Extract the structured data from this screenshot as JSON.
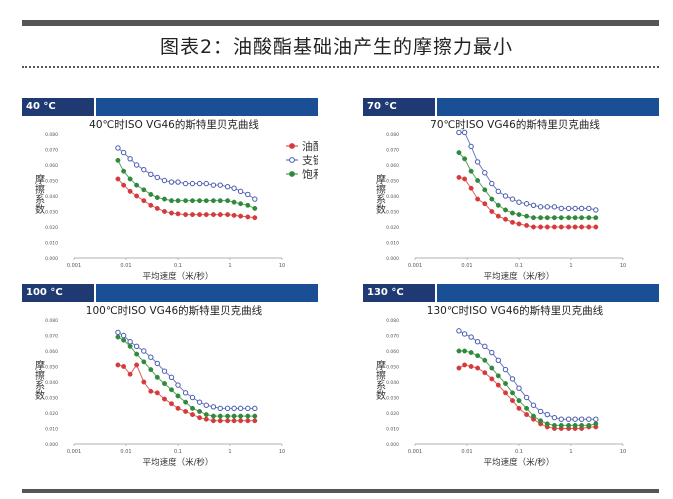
{
  "page": {
    "title": "图表2：油酸酯基础油产生的摩擦力最小"
  },
  "colors": {
    "header_dark": "#1f3a73",
    "header_bar": "#1a4f95",
    "oleate": "#d63a3a",
    "branched": "#4a5bb0",
    "saturated": "#2f8a3c"
  },
  "chart_data": [
    {
      "type": "scatter",
      "panel_label": "40 °C",
      "title": "40℃时ISO VG46的斯特里贝克曲线",
      "xlabel": "平均速度（米/秒）",
      "ylabel": "摩擦系数",
      "x_scale": "log",
      "xlim": [
        0.001,
        10
      ],
      "ylim": [
        0.0,
        0.08
      ],
      "x_ticks": [
        "0.001",
        "0.01",
        "0.1",
        "1",
        "10"
      ],
      "y_ticks": [
        "0.000",
        "0.010",
        "0.020",
        "0.030",
        "0.040",
        "0.050",
        "0.060",
        "0.070",
        "0.080"
      ],
      "x": [
        0.007,
        0.009,
        0.012,
        0.016,
        0.022,
        0.03,
        0.04,
        0.055,
        0.075,
        0.1,
        0.14,
        0.19,
        0.26,
        0.35,
        0.48,
        0.65,
        0.9,
        1.2,
        1.6,
        2.2,
        3.0
      ],
      "series": [
        {
          "name": "油酸酯",
          "color": "#d63a3a",
          "values": [
            0.051,
            0.047,
            0.043,
            0.04,
            0.037,
            0.034,
            0.032,
            0.03,
            0.029,
            0.0285,
            0.028,
            0.028,
            0.028,
            0.028,
            0.028,
            0.028,
            0.028,
            0.0275,
            0.027,
            0.0265,
            0.026
          ]
        },
        {
          "name": "支链酯",
          "color": "#4a5bb0",
          "values": [
            0.071,
            0.068,
            0.064,
            0.06,
            0.057,
            0.054,
            0.052,
            0.05,
            0.049,
            0.049,
            0.048,
            0.048,
            0.048,
            0.048,
            0.047,
            0.047,
            0.046,
            0.045,
            0.043,
            0.041,
            0.038
          ]
        },
        {
          "name": "饱和酯",
          "color": "#2f8a3c",
          "values": [
            0.063,
            0.056,
            0.051,
            0.047,
            0.044,
            0.041,
            0.039,
            0.038,
            0.037,
            0.037,
            0.037,
            0.037,
            0.037,
            0.037,
            0.037,
            0.037,
            0.037,
            0.036,
            0.035,
            0.034,
            0.032
          ]
        }
      ],
      "legend": {
        "show": true,
        "position": "right"
      }
    },
    {
      "type": "scatter",
      "panel_label": "70 °C",
      "title": "70℃时ISO VG46的斯特里贝克曲线",
      "xlabel": "平均速度（米/秒）",
      "ylabel": "摩擦系数",
      "x_scale": "log",
      "xlim": [
        0.001,
        10
      ],
      "ylim": [
        0.0,
        0.08
      ],
      "x_ticks": [
        "0.001",
        "0.01",
        "0.1",
        "1",
        "10"
      ],
      "y_ticks": [
        "0.000",
        "0.010",
        "0.020",
        "0.030",
        "0.040",
        "0.050",
        "0.060",
        "0.070",
        "0.080"
      ],
      "x": [
        0.007,
        0.009,
        0.012,
        0.016,
        0.022,
        0.03,
        0.04,
        0.055,
        0.075,
        0.1,
        0.14,
        0.19,
        0.26,
        0.35,
        0.48,
        0.65,
        0.9,
        1.2,
        1.6,
        2.2,
        3.0
      ],
      "series": [
        {
          "name": "油酸酯",
          "color": "#d63a3a",
          "values": [
            0.052,
            0.051,
            0.045,
            0.038,
            0.035,
            0.03,
            0.027,
            0.025,
            0.023,
            0.022,
            0.021,
            0.02,
            0.02,
            0.02,
            0.02,
            0.02,
            0.02,
            0.02,
            0.02,
            0.02,
            0.02
          ]
        },
        {
          "name": "支链酯",
          "color": "#4a5bb0",
          "values": [
            0.081,
            0.081,
            0.072,
            0.062,
            0.055,
            0.048,
            0.043,
            0.04,
            0.038,
            0.036,
            0.035,
            0.034,
            0.033,
            0.033,
            0.033,
            0.032,
            0.032,
            0.032,
            0.032,
            0.032,
            0.031
          ]
        },
        {
          "name": "饱和酯",
          "color": "#2f8a3c",
          "values": [
            0.068,
            0.064,
            0.056,
            0.05,
            0.044,
            0.038,
            0.034,
            0.031,
            0.029,
            0.028,
            0.027,
            0.026,
            0.026,
            0.026,
            0.026,
            0.026,
            0.026,
            0.026,
            0.026,
            0.026,
            0.026
          ]
        }
      ],
      "legend": {
        "show": false
      }
    },
    {
      "type": "scatter",
      "panel_label": "100 °C",
      "title": "100℃时ISO VG46的斯特里贝克曲线",
      "xlabel": "平均速度（米/秒）",
      "ylabel": "摩擦系数",
      "x_scale": "log",
      "xlim": [
        0.001,
        10
      ],
      "ylim": [
        0.0,
        0.08
      ],
      "x_ticks": [
        "0.001",
        "0.01",
        "0.1",
        "1",
        "10"
      ],
      "y_ticks": [
        "0.000",
        "0.010",
        "0.020",
        "0.030",
        "0.040",
        "0.050",
        "0.060",
        "0.070",
        "0.080"
      ],
      "x": [
        0.007,
        0.009,
        0.012,
        0.016,
        0.022,
        0.03,
        0.04,
        0.055,
        0.075,
        0.1,
        0.14,
        0.19,
        0.26,
        0.35,
        0.48,
        0.65,
        0.9,
        1.2,
        1.6,
        2.2,
        3.0
      ],
      "series": [
        {
          "name": "油酸酯",
          "color": "#d63a3a",
          "values": [
            0.051,
            0.05,
            0.045,
            0.051,
            0.04,
            0.034,
            0.033,
            0.029,
            0.026,
            0.023,
            0.021,
            0.019,
            0.017,
            0.016,
            0.015,
            0.015,
            0.015,
            0.015,
            0.015,
            0.015,
            0.015
          ]
        },
        {
          "name": "支链酯",
          "color": "#4a5bb0",
          "values": [
            0.072,
            0.07,
            0.066,
            0.063,
            0.06,
            0.056,
            0.052,
            0.047,
            0.043,
            0.038,
            0.033,
            0.03,
            0.027,
            0.025,
            0.024,
            0.023,
            0.023,
            0.023,
            0.023,
            0.023,
            0.023
          ]
        },
        {
          "name": "饱和酯",
          "color": "#2f8a3c",
          "values": [
            0.069,
            0.067,
            0.063,
            0.058,
            0.053,
            0.048,
            0.043,
            0.039,
            0.035,
            0.031,
            0.027,
            0.023,
            0.021,
            0.019,
            0.018,
            0.018,
            0.018,
            0.018,
            0.018,
            0.018,
            0.018
          ]
        }
      ],
      "legend": {
        "show": false
      }
    },
    {
      "type": "scatter",
      "panel_label": "130 °C",
      "title": "130℃时ISO VG46的斯特里贝克曲线",
      "xlabel": "平均速度（米/秒）",
      "ylabel": "摩擦系数",
      "x_scale": "log",
      "xlim": [
        0.001,
        10
      ],
      "ylim": [
        0.0,
        0.08
      ],
      "x_ticks": [
        "0.001",
        "0.01",
        "0.1",
        "1",
        "10"
      ],
      "y_ticks": [
        "0.000",
        "0.010",
        "0.020",
        "0.030",
        "0.040",
        "0.050",
        "0.060",
        "0.070",
        "0.080"
      ],
      "x": [
        0.007,
        0.009,
        0.012,
        0.016,
        0.022,
        0.03,
        0.04,
        0.055,
        0.075,
        0.1,
        0.14,
        0.19,
        0.26,
        0.35,
        0.48,
        0.65,
        0.9,
        1.2,
        1.6,
        2.2,
        3.0
      ],
      "series": [
        {
          "name": "油酸酯",
          "color": "#d63a3a",
          "values": [
            0.049,
            0.051,
            0.05,
            0.049,
            0.046,
            0.042,
            0.038,
            0.033,
            0.028,
            0.023,
            0.019,
            0.016,
            0.013,
            0.011,
            0.01,
            0.01,
            0.01,
            0.01,
            0.01,
            0.011,
            0.011
          ]
        },
        {
          "name": "支链酯",
          "color": "#4a5bb0",
          "values": [
            0.073,
            0.071,
            0.069,
            0.066,
            0.063,
            0.059,
            0.054,
            0.048,
            0.042,
            0.036,
            0.03,
            0.025,
            0.021,
            0.019,
            0.017,
            0.016,
            0.016,
            0.016,
            0.016,
            0.016,
            0.016
          ]
        },
        {
          "name": "饱和酯",
          "color": "#2f8a3c",
          "values": [
            0.06,
            0.06,
            0.059,
            0.057,
            0.054,
            0.049,
            0.044,
            0.039,
            0.033,
            0.028,
            0.023,
            0.018,
            0.015,
            0.013,
            0.012,
            0.012,
            0.012,
            0.012,
            0.012,
            0.012,
            0.013
          ]
        }
      ],
      "legend": {
        "show": false
      }
    }
  ]
}
